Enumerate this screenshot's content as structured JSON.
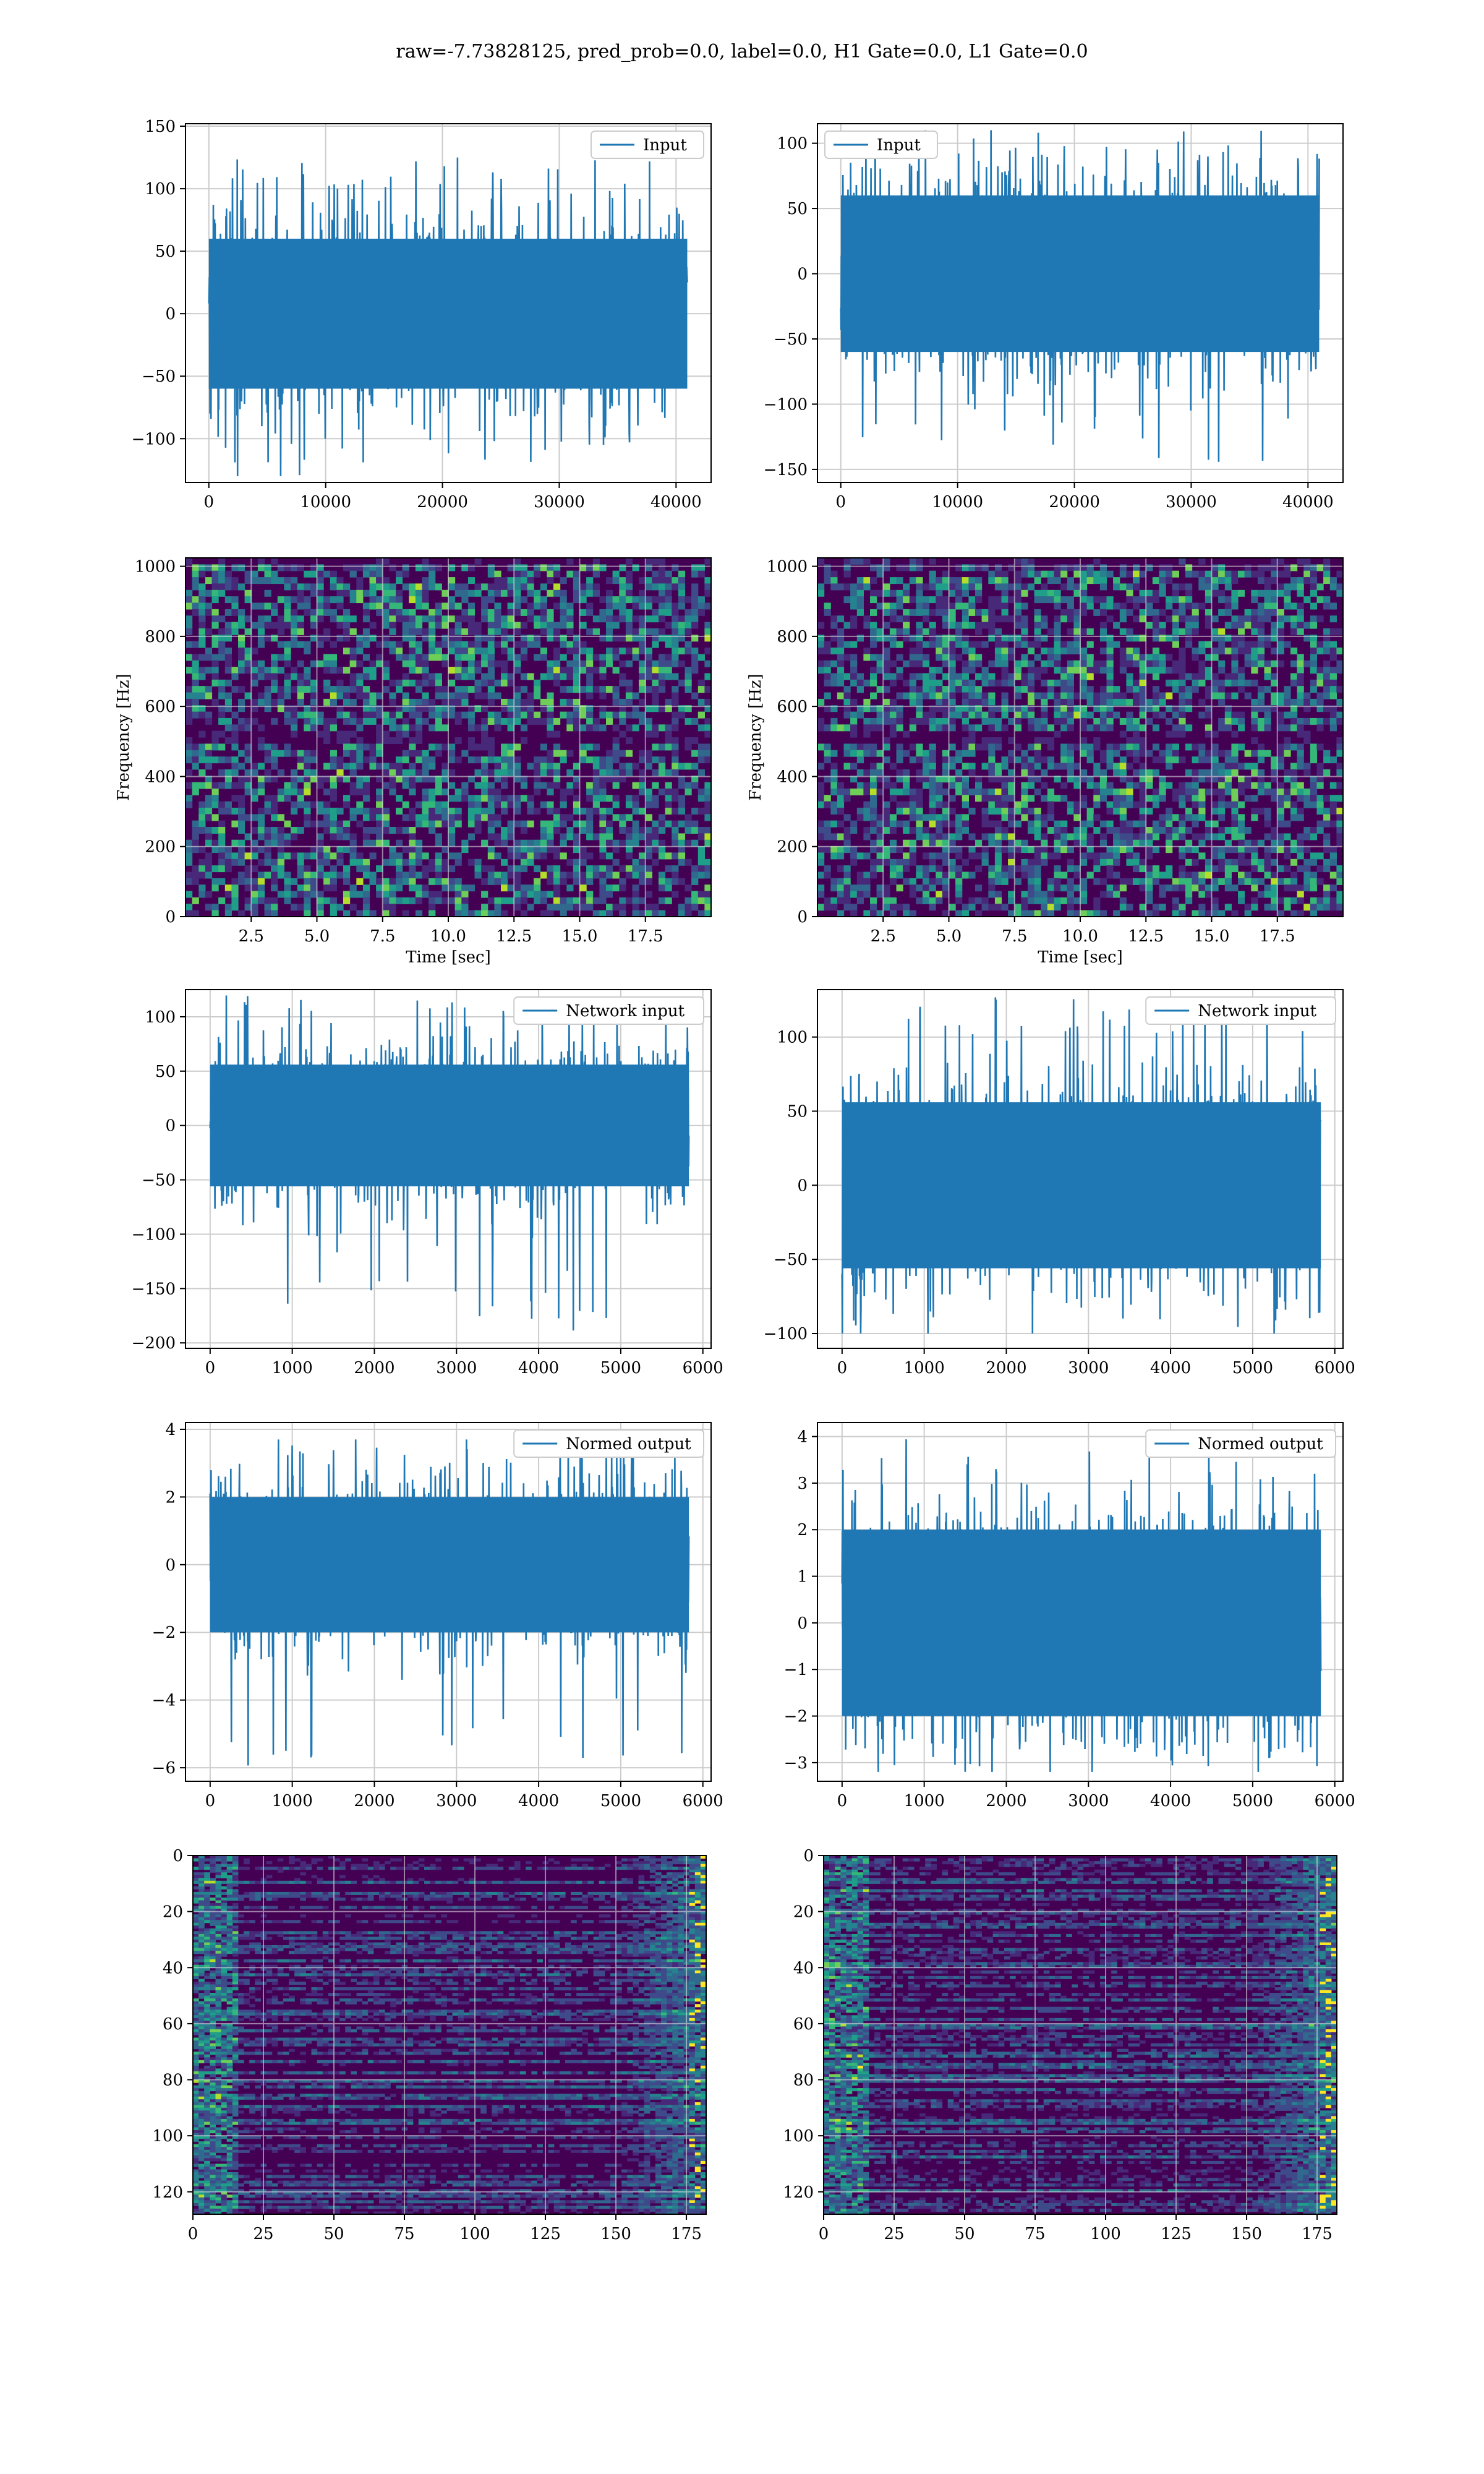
{
  "title": "raw=-7.73828125, pred_prob=0.0, label=0.0, H1 Gate=0.0, L1 Gate=0.0",
  "colors": {
    "series": "#1f77b4",
    "grid": "#cccccc",
    "viridis_low": "#440154"
  },
  "chart_data": [
    {
      "id": "ts-input-left",
      "type": "line",
      "legend": [
        "Input"
      ],
      "legend_loc": "upper right",
      "xlim": [
        -2000,
        43000
      ],
      "ylim": [
        -135,
        152
      ],
      "xticks": [
        0,
        10000,
        20000,
        30000,
        40000
      ],
      "yticks": [
        -100,
        -50,
        0,
        50,
        100,
        150
      ],
      "series": [
        {
          "name": "Input",
          "x_range": [
            0,
            40960
          ],
          "mean": 0,
          "std": 30,
          "min": -130,
          "max": 125
        }
      ]
    },
    {
      "id": "ts-input-right",
      "type": "line",
      "legend": [
        "Input"
      ],
      "legend_loc": "upper left",
      "xlim": [
        -2000,
        43000
      ],
      "ylim": [
        -160,
        115
      ],
      "xticks": [
        0,
        10000,
        20000,
        30000,
        40000
      ],
      "yticks": [
        -150,
        -100,
        -50,
        0,
        50,
        100
      ],
      "series": [
        {
          "name": "Input",
          "x_range": [
            0,
            40960
          ],
          "mean": 0,
          "std": 30,
          "min": -145,
          "max": 110
        }
      ]
    },
    {
      "id": "spec-left",
      "type": "heatmap",
      "colormap": "viridis",
      "xlabel": "Time [sec]",
      "ylabel": "Frequency [Hz]",
      "xlim": [
        0,
        20
      ],
      "ylim": [
        0,
        1024
      ],
      "xticks": [
        2.5,
        5.0,
        7.5,
        10.0,
        12.5,
        15.0,
        17.5
      ],
      "xticklabels": [
        "2.5",
        "5.0",
        "7.5",
        "10.0",
        "12.5",
        "15.0",
        "17.5"
      ],
      "yticks": [
        0,
        200,
        400,
        600,
        800,
        1000
      ]
    },
    {
      "id": "spec-right",
      "type": "heatmap",
      "colormap": "viridis",
      "xlabel": "Time [sec]",
      "ylabel": "Frequency [Hz]",
      "xlim": [
        0,
        20
      ],
      "ylim": [
        0,
        1024
      ],
      "xticks": [
        2.5,
        5.0,
        7.5,
        10.0,
        12.5,
        15.0,
        17.5
      ],
      "xticklabels": [
        "2.5",
        "5.0",
        "7.5",
        "10.0",
        "12.5",
        "15.0",
        "17.5"
      ],
      "yticks": [
        0,
        200,
        400,
        600,
        800,
        1000
      ]
    },
    {
      "id": "ts-net-left",
      "type": "line",
      "legend": [
        "Network input"
      ],
      "legend_loc": "upper right",
      "xlim": [
        -300,
        6100
      ],
      "ylim": [
        -205,
        125
      ],
      "xticks": [
        0,
        1000,
        2000,
        3000,
        4000,
        5000,
        6000
      ],
      "yticks": [
        -200,
        -150,
        -100,
        -50,
        0,
        50,
        100
      ],
      "series": [
        {
          "name": "Network input",
          "x_range": [
            0,
            5830
          ],
          "mean": 0,
          "std": 28,
          "min": -190,
          "max": 120
        }
      ]
    },
    {
      "id": "ts-net-right",
      "type": "line",
      "legend": [
        "Network input"
      ],
      "legend_loc": "upper right",
      "xlim": [
        -300,
        6100
      ],
      "ylim": [
        -110,
        132
      ],
      "xticks": [
        0,
        1000,
        2000,
        3000,
        4000,
        5000,
        6000
      ],
      "yticks": [
        -100,
        -50,
        0,
        50,
        100
      ],
      "series": [
        {
          "name": "Network input",
          "x_range": [
            0,
            5830
          ],
          "mean": 0,
          "std": 28,
          "min": -100,
          "max": 128
        }
      ]
    },
    {
      "id": "ts-norm-left",
      "type": "line",
      "legend": [
        "Normed output"
      ],
      "legend_loc": "upper right",
      "xlim": [
        -300,
        6100
      ],
      "ylim": [
        -6.4,
        4.2
      ],
      "xticks": [
        0,
        1000,
        2000,
        3000,
        4000,
        5000,
        6000
      ],
      "yticks": [
        -6,
        -4,
        -2,
        0,
        2,
        4
      ],
      "series": [
        {
          "name": "Normed output",
          "x_range": [
            0,
            5830
          ],
          "mean": 0,
          "std": 1,
          "min": -6.0,
          "max": 3.7
        }
      ]
    },
    {
      "id": "ts-norm-right",
      "type": "line",
      "legend": [
        "Normed output"
      ],
      "legend_loc": "upper right",
      "xlim": [
        -300,
        6100
      ],
      "ylim": [
        -3.4,
        4.3
      ],
      "xticks": [
        0,
        1000,
        2000,
        3000,
        4000,
        5000,
        6000
      ],
      "yticks": [
        -3,
        -2,
        -1,
        0,
        1,
        2,
        3,
        4
      ],
      "series": [
        {
          "name": "Normed output",
          "x_range": [
            0,
            5830
          ],
          "mean": 0,
          "std": 1,
          "min": -3.2,
          "max": 4.0
        }
      ]
    },
    {
      "id": "feat-left",
      "type": "heatmap",
      "colormap": "viridis",
      "xlim": [
        0,
        182
      ],
      "ylim": [
        128,
        0
      ],
      "xticks": [
        0,
        25,
        50,
        75,
        100,
        125,
        150,
        175
      ],
      "yticks": [
        0,
        20,
        40,
        60,
        80,
        100,
        120
      ]
    },
    {
      "id": "feat-right",
      "type": "heatmap",
      "colormap": "viridis",
      "xlim": [
        0,
        182
      ],
      "ylim": [
        128,
        0
      ],
      "xticks": [
        0,
        25,
        50,
        75,
        100,
        125,
        150,
        175
      ],
      "yticks": [
        0,
        20,
        40,
        60,
        80,
        100,
        120
      ]
    }
  ]
}
